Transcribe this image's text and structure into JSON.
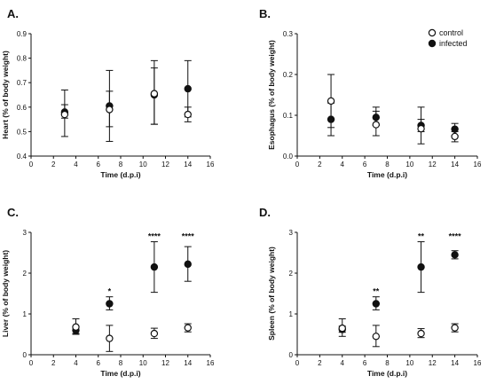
{
  "legend": {
    "placement": "top-right of panel B",
    "entries": [
      {
        "label": "control",
        "marker": "open-circle"
      },
      {
        "label": "infected",
        "marker": "filled-circle"
      }
    ]
  },
  "colors": {
    "marker": "#111111",
    "open_fill": "#ffffff"
  },
  "chart_data": [
    {
      "panel": "A.",
      "type": "scatter",
      "xlabel": "Time (d.p.i)",
      "ylabel": "Heart (% of body weight)",
      "xlim": [
        0,
        16
      ],
      "ylim": [
        0.4,
        0.9
      ],
      "xticks": [
        "0",
        "2",
        "4",
        "6",
        "8",
        "10",
        "12",
        "14",
        "16"
      ],
      "yticks": [
        "0.4",
        "0.5",
        "0.6",
        "0.7",
        "0.8",
        "0.9"
      ],
      "grid": false,
      "series": [
        {
          "name": "control",
          "x": [
            3,
            7,
            11,
            14
          ],
          "y": [
            0.57,
            0.59,
            0.655,
            0.57
          ],
          "err_low": [
            0.555,
            0.52,
            0.53,
            0.54
          ],
          "err_high": [
            0.61,
            0.665,
            0.76,
            0.6
          ]
        },
        {
          "name": "infected",
          "x": [
            3,
            7,
            11,
            14
          ],
          "y": [
            0.58,
            0.605,
            0.65,
            0.675
          ],
          "err_low": [
            0.48,
            0.46,
            0.53,
            0.56
          ],
          "err_high": [
            0.67,
            0.75,
            0.79,
            0.79
          ]
        }
      ],
      "annotations": []
    },
    {
      "panel": "B.",
      "type": "scatter",
      "xlabel": "Time (d.p.i)",
      "ylabel": "Esophagus (% of body weight)",
      "xlim": [
        0,
        16
      ],
      "ylim": [
        0.0,
        0.3
      ],
      "xticks": [
        "0",
        "2",
        "4",
        "6",
        "8",
        "10",
        "12",
        "14",
        "16"
      ],
      "yticks": [
        "0.0",
        "0.1",
        "0.2",
        "0.3"
      ],
      "grid": false,
      "series": [
        {
          "name": "control",
          "x": [
            3,
            7,
            11,
            14
          ],
          "y": [
            0.135,
            0.077,
            0.067,
            0.048
          ],
          "err_low": [
            0.07,
            0.05,
            0.03,
            0.035
          ],
          "err_high": [
            0.2,
            0.11,
            0.12,
            0.06
          ]
        },
        {
          "name": "infected",
          "x": [
            3,
            7,
            11,
            14
          ],
          "y": [
            0.09,
            0.095,
            0.075,
            0.066
          ],
          "err_low": [
            0.05,
            0.075,
            0.06,
            0.05
          ],
          "err_high": [
            0.13,
            0.12,
            0.09,
            0.08
          ]
        }
      ],
      "annotations": []
    },
    {
      "panel": "C.",
      "type": "scatter",
      "xlabel": "Time (d.p.i)",
      "ylabel": "Liver (% of body weight)",
      "xlim": [
        0,
        16
      ],
      "ylim": [
        0,
        3
      ],
      "xticks": [
        "0",
        "2",
        "4",
        "6",
        "8",
        "10",
        "12",
        "14",
        "16"
      ],
      "yticks": [
        "0",
        "1",
        "2",
        "3"
      ],
      "grid": false,
      "series": [
        {
          "name": "control",
          "x": [
            4,
            7,
            11,
            14
          ],
          "y": [
            0.68,
            0.4,
            0.52,
            0.66
          ],
          "err_low": [
            0.52,
            0.08,
            0.4,
            0.56
          ],
          "err_high": [
            0.88,
            0.72,
            0.65,
            0.76
          ]
        },
        {
          "name": "infected",
          "x": [
            4,
            7,
            11,
            14
          ],
          "y": [
            0.6,
            1.25,
            2.15,
            2.22
          ],
          "err_low": [
            0.5,
            1.1,
            1.53,
            1.8
          ],
          "err_high": [
            0.7,
            1.42,
            2.77,
            2.65
          ]
        }
      ],
      "annotations": [
        {
          "x": 7,
          "y": 1.55,
          "text": "*"
        },
        {
          "x": 11,
          "y": 2.9,
          "text": "****"
        },
        {
          "x": 14,
          "y": 2.9,
          "text": "****"
        }
      ]
    },
    {
      "panel": "D.",
      "type": "scatter",
      "xlabel": "Time (d.p.i)",
      "ylabel": "Spleen (% of body weight)",
      "xlim": [
        0,
        16
      ],
      "ylim": [
        0,
        3
      ],
      "xticks": [
        "0",
        "2",
        "4",
        "6",
        "8",
        "10",
        "12",
        "14",
        "16"
      ],
      "yticks": [
        "0",
        "1",
        "2",
        "3"
      ],
      "grid": false,
      "series": [
        {
          "name": "control",
          "x": [
            4,
            7,
            11,
            14
          ],
          "y": [
            0.65,
            0.45,
            0.52,
            0.66
          ],
          "err_low": [
            0.45,
            0.2,
            0.42,
            0.56
          ],
          "err_high": [
            0.88,
            0.72,
            0.64,
            0.76
          ]
        },
        {
          "name": "infected",
          "x": [
            4,
            7,
            11,
            14
          ],
          "y": [
            0.62,
            1.25,
            2.15,
            2.45
          ],
          "err_low": [
            0.55,
            1.1,
            1.53,
            2.35
          ],
          "err_high": [
            0.7,
            1.42,
            2.77,
            2.55
          ]
        }
      ],
      "annotations": [
        {
          "x": 7,
          "y": 1.55,
          "text": "**"
        },
        {
          "x": 11,
          "y": 2.9,
          "text": "**"
        },
        {
          "x": 14,
          "y": 2.9,
          "text": "****"
        }
      ]
    }
  ]
}
